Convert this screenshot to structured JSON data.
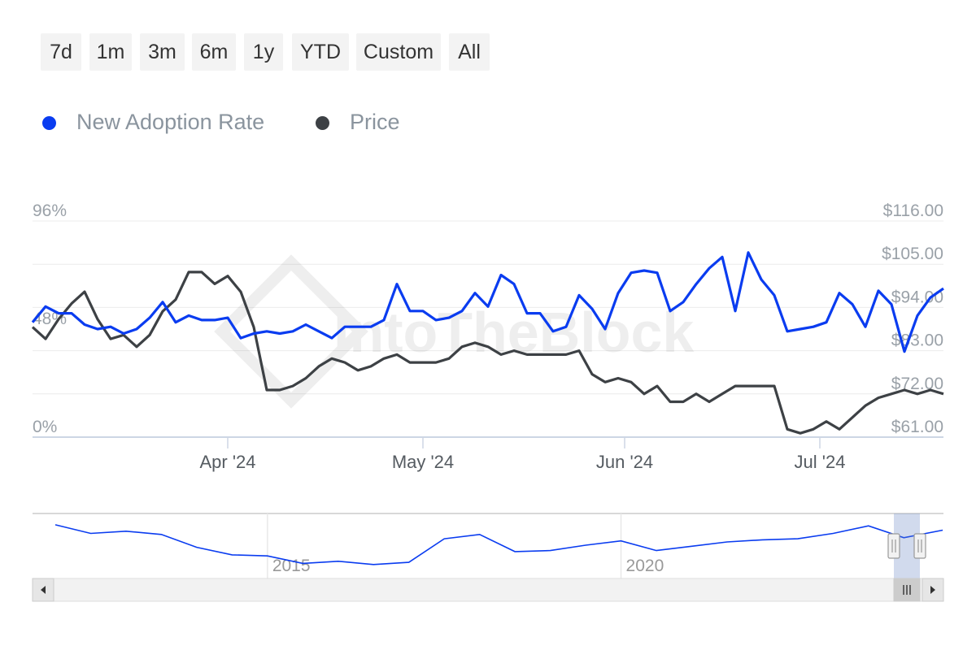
{
  "range_selector": {
    "buttons": [
      {
        "label": "7d"
      },
      {
        "label": "1m"
      },
      {
        "label": "3m"
      },
      {
        "label": "6m"
      },
      {
        "label": "1y"
      },
      {
        "label": "YTD"
      },
      {
        "label": "Custom"
      },
      {
        "label": "All"
      }
    ]
  },
  "legend": {
    "items": [
      {
        "label": "New Adoption Rate",
        "color": "#0a3cf0"
      },
      {
        "label": "Price",
        "color": "#3d4145"
      }
    ]
  },
  "watermark": "IntoTheBlock",
  "chart_data": {
    "type": "line",
    "x_axis": {
      "ticks": [
        "Apr '24",
        "May '24",
        "Jun '24",
        "Jul '24"
      ],
      "tick_dates": [
        "2024-04-01",
        "2024-05-01",
        "2024-06-01",
        "2024-07-01"
      ],
      "range": [
        "2024-03-02",
        "2024-07-20"
      ]
    },
    "y_left": {
      "ticks": [
        "96%",
        "48%",
        "0%"
      ],
      "range": [
        0,
        96
      ],
      "unit": "%"
    },
    "y_right": {
      "ticks": [
        "$116.00",
        "$105.00",
        "$94.00",
        "$83.00",
        "$72.00",
        "$61.00"
      ],
      "range": [
        61,
        116
      ],
      "unit": "$"
    },
    "grid": true,
    "legend_position": "top-left",
    "series": [
      {
        "name": "New Adoption Rate",
        "axis": "left",
        "color": "#0a3cf0",
        "x": [
          "2024-03-02",
          "2024-03-04",
          "2024-03-06",
          "2024-03-08",
          "2024-03-10",
          "2024-03-12",
          "2024-03-14",
          "2024-03-16",
          "2024-03-18",
          "2024-03-20",
          "2024-03-22",
          "2024-03-24",
          "2024-03-26",
          "2024-03-28",
          "2024-03-30",
          "2024-04-01",
          "2024-04-03",
          "2024-04-05",
          "2024-04-07",
          "2024-04-09",
          "2024-04-11",
          "2024-04-13",
          "2024-04-15",
          "2024-04-17",
          "2024-04-19",
          "2024-04-21",
          "2024-04-23",
          "2024-04-25",
          "2024-04-27",
          "2024-04-29",
          "2024-05-01",
          "2024-05-03",
          "2024-05-05",
          "2024-05-07",
          "2024-05-09",
          "2024-05-11",
          "2024-05-13",
          "2024-05-15",
          "2024-05-17",
          "2024-05-19",
          "2024-05-21",
          "2024-05-23",
          "2024-05-25",
          "2024-05-27",
          "2024-05-29",
          "2024-05-31",
          "2024-06-02",
          "2024-06-04",
          "2024-06-06",
          "2024-06-08",
          "2024-06-10",
          "2024-06-12",
          "2024-06-14",
          "2024-06-16",
          "2024-06-18",
          "2024-06-20",
          "2024-06-22",
          "2024-06-24",
          "2024-06-26",
          "2024-06-28",
          "2024-06-30",
          "2024-07-02",
          "2024-07-04",
          "2024-07-06",
          "2024-07-08",
          "2024-07-10",
          "2024-07-12",
          "2024-07-14",
          "2024-07-16",
          "2024-07-18",
          "2024-07-20"
        ],
        "values": [
          51,
          58,
          55,
          55,
          50,
          48,
          49,
          46,
          48,
          53,
          60,
          51,
          54,
          52,
          52,
          53,
          44,
          46,
          47,
          46,
          47,
          50,
          47,
          44,
          49,
          49,
          49,
          52,
          68,
          56,
          56,
          52,
          53,
          56,
          64,
          58,
          72,
          68,
          55,
          55,
          47,
          49,
          63,
          57,
          48,
          64,
          73,
          74,
          73,
          56,
          60,
          68,
          75,
          80,
          56,
          82,
          70,
          63,
          47,
          48,
          49,
          51,
          64,
          59,
          49,
          65,
          59,
          38,
          54,
          62,
          66
        ]
      },
      {
        "name": "Price",
        "axis": "right",
        "color": "#3d4145",
        "x": [
          "2024-03-02",
          "2024-03-04",
          "2024-03-06",
          "2024-03-08",
          "2024-03-10",
          "2024-03-12",
          "2024-03-14",
          "2024-03-16",
          "2024-03-18",
          "2024-03-20",
          "2024-03-22",
          "2024-03-24",
          "2024-03-26",
          "2024-03-28",
          "2024-03-30",
          "2024-04-01",
          "2024-04-03",
          "2024-04-05",
          "2024-04-07",
          "2024-04-09",
          "2024-04-11",
          "2024-04-13",
          "2024-04-15",
          "2024-04-17",
          "2024-04-19",
          "2024-04-21",
          "2024-04-23",
          "2024-04-25",
          "2024-04-27",
          "2024-04-29",
          "2024-05-01",
          "2024-05-03",
          "2024-05-05",
          "2024-05-07",
          "2024-05-09",
          "2024-05-11",
          "2024-05-13",
          "2024-05-15",
          "2024-05-17",
          "2024-05-19",
          "2024-05-21",
          "2024-05-23",
          "2024-05-25",
          "2024-05-27",
          "2024-05-29",
          "2024-05-31",
          "2024-06-02",
          "2024-06-04",
          "2024-06-06",
          "2024-06-08",
          "2024-06-10",
          "2024-06-12",
          "2024-06-14",
          "2024-06-16",
          "2024-06-18",
          "2024-06-20",
          "2024-06-22",
          "2024-06-24",
          "2024-06-26",
          "2024-06-28",
          "2024-06-30",
          "2024-07-02",
          "2024-07-04",
          "2024-07-06",
          "2024-07-08",
          "2024-07-10",
          "2024-07-12",
          "2024-07-14",
          "2024-07-16",
          "2024-07-18",
          "2024-07-20"
        ],
        "values": [
          89,
          86,
          91,
          95,
          98,
          91,
          86,
          87,
          84,
          87,
          93,
          96,
          103,
          103,
          100,
          102,
          98,
          89,
          73,
          73,
          74,
          76,
          79,
          81,
          80,
          78,
          79,
          81,
          82,
          80,
          80,
          80,
          81,
          84,
          85,
          84,
          82,
          83,
          82,
          82,
          82,
          82,
          83,
          77,
          75,
          76,
          75,
          72,
          74,
          70,
          70,
          72,
          70,
          72,
          74,
          74,
          74,
          74,
          63,
          62,
          63,
          65,
          63,
          66,
          69,
          71,
          72,
          73,
          72,
          73,
          72
        ]
      }
    ],
    "navigator": {
      "tick_labels": [
        "2015",
        "2020"
      ],
      "range": [
        "2012-01-01",
        "2024-07-20"
      ],
      "selected_range": [
        "2024-03-02",
        "2024-07-20"
      ],
      "series": {
        "name": "New Adoption Rate",
        "x": [
          2012.0,
          2012.5,
          2013.0,
          2013.5,
          2014.0,
          2014.5,
          2015.0,
          2015.5,
          2016.0,
          2016.5,
          2017.0,
          2017.5,
          2018.0,
          2018.5,
          2019.0,
          2019.5,
          2020.0,
          2020.5,
          2021.0,
          2021.5,
          2022.0,
          2022.5,
          2023.0,
          2023.5,
          2024.0,
          2024.55
        ],
        "values": [
          88,
          72,
          76,
          70,
          46,
          32,
          30,
          16,
          20,
          14,
          18,
          62,
          70,
          38,
          40,
          50,
          58,
          40,
          48,
          56,
          60,
          62,
          72,
          86,
          64,
          78
        ]
      }
    }
  }
}
